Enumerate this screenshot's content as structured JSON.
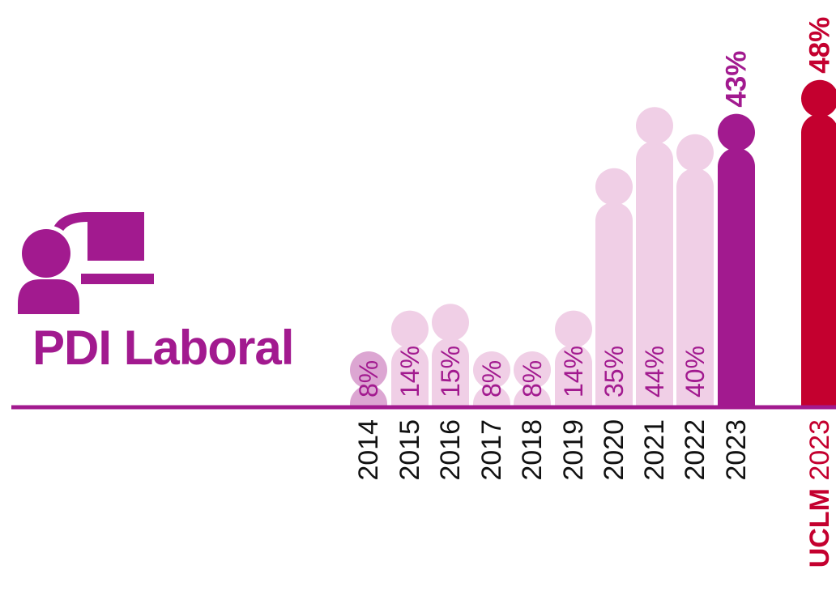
{
  "title": "PDI Laboral",
  "colors": {
    "primary": "#a21a8f",
    "light": "#f0cfe6",
    "earliest": "#dca6d2",
    "highlight": "#c4002f",
    "axis": "#a21a8f"
  },
  "icon": "teacher-at-board-icon",
  "chart_data": {
    "type": "bar",
    "title": "PDI Laboral",
    "categories": [
      "2014",
      "2015",
      "2016",
      "2017",
      "2018",
      "2019",
      "2020",
      "2021",
      "2022",
      "2023"
    ],
    "values": [
      8,
      14,
      15,
      8,
      8,
      14,
      35,
      44,
      40,
      43
    ],
    "labels": [
      "8%",
      "14%",
      "15%",
      "8%",
      "8%",
      "14%",
      "35%",
      "44%",
      "40%",
      "43%"
    ],
    "ylim": [
      0,
      48
    ],
    "comparison": {
      "prefix": "UCLM",
      "year": "2023",
      "value": 48,
      "label": "48%"
    }
  }
}
